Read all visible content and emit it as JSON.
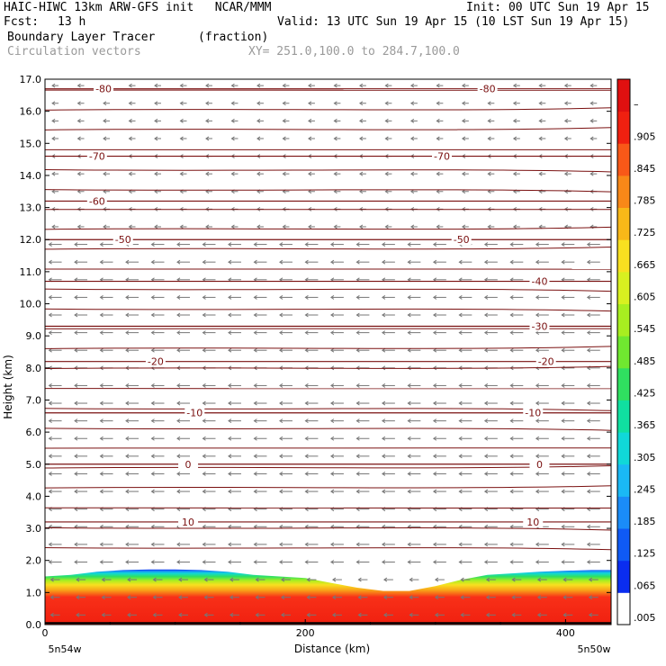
{
  "header": {
    "title_left": "HAIC-HIWC 13km ARW-GFS init   NCAR/MMM",
    "init": "Init: 00 UTC Sun 19 Apr 15",
    "fcst_label": "Fcst:",
    "fcst_value": "13 h",
    "valid": "Valid: 13 UTC Sun 19 Apr 15 (10 LST Sun 19 Apr 15)",
    "field_name": "Boundary Layer Tracer",
    "field_units": "(fraction)",
    "overlay_name": "Circulation vectors",
    "xy_range": "XY= 251.0,100.0 to 284.7,100.0"
  },
  "chart_data": {
    "type": "heatmap",
    "xlabel": "Distance (km)",
    "ylabel": "Height (km)",
    "xlim": [
      0,
      435
    ],
    "ylim": [
      0,
      17
    ],
    "x_ticks": [
      "0",
      "200",
      "400"
    ],
    "x_tick_values": [
      0,
      200,
      400
    ],
    "x_end_labels": {
      "left": "5n54w",
      "right": "5n50w"
    },
    "y_ticks": [
      "0.0",
      "1.0",
      "2.0",
      "3.0",
      "4.0",
      "5.0",
      "6.0",
      "7.0",
      "8.0",
      "9.0",
      "10.0",
      "11.0",
      "12.0",
      "13.0",
      "14.0",
      "15.0",
      "16.0",
      "17.0"
    ],
    "colorbar": {
      "labels": [
        ".005",
        ".065",
        ".125",
        ".185",
        ".245",
        ".305",
        ".365",
        ".425",
        ".485",
        ".545",
        ".605",
        ".665",
        ".725",
        ".785",
        ".845",
        ".905",
        "–"
      ],
      "colors": [
        "#ffffff",
        "#0a2df0",
        "#0f5af5",
        "#1a8cf8",
        "#1ab9f5",
        "#10d8d8",
        "#10e0a0",
        "#30e060",
        "#70e830",
        "#a8ee20",
        "#d8f020",
        "#f8e020",
        "#f8b818",
        "#f88818",
        "#f85818",
        "#f02010",
        "#e01010"
      ]
    },
    "tracer_top_km": [
      [
        0,
        1.5
      ],
      [
        20,
        1.55
      ],
      [
        40,
        1.65
      ],
      [
        60,
        1.7
      ],
      [
        80,
        1.72
      ],
      [
        100,
        1.72
      ],
      [
        120,
        1.7
      ],
      [
        140,
        1.65
      ],
      [
        160,
        1.55
      ],
      [
        180,
        1.5
      ],
      [
        200,
        1.45
      ],
      [
        220,
        1.3
      ],
      [
        240,
        1.15
      ],
      [
        260,
        1.05
      ],
      [
        280,
        1.05
      ],
      [
        300,
        1.2
      ],
      [
        320,
        1.4
      ],
      [
        340,
        1.55
      ],
      [
        360,
        1.6
      ],
      [
        380,
        1.65
      ],
      [
        400,
        1.68
      ],
      [
        420,
        1.7
      ],
      [
        435,
        1.7
      ]
    ],
    "temperature_contours": [
      {
        "label": "-80",
        "km": 16.7,
        "label_positions": [
          45,
          340
        ]
      },
      {
        "label": "-70",
        "km": 14.6,
        "label_positions": [
          40,
          305
        ]
      },
      {
        "label": "-60",
        "km": 13.2,
        "label_positions": [
          40
        ]
      },
      {
        "label": "-50",
        "km": 12.0,
        "label_positions": [
          60,
          320
        ]
      },
      {
        "label": "-40",
        "km": 10.7,
        "label_positions": [
          380
        ]
      },
      {
        "label": "-30",
        "km": 9.3,
        "label_positions": [
          380
        ]
      },
      {
        "label": "-20",
        "km": 8.2,
        "label_positions": [
          85,
          385
        ]
      },
      {
        "label": "-10",
        "km": 6.6,
        "label_positions": [
          115,
          375
        ]
      },
      {
        "label": "0",
        "km": 5.0,
        "label_positions": [
          110,
          380
        ]
      },
      {
        "label": "10",
        "km": 3.2,
        "label_positions": [
          110,
          375
        ]
      }
    ],
    "grid_on": false,
    "legend_placement": "right colorbar",
    "contour_color": "#7a1010",
    "vector_color": "#777777"
  }
}
